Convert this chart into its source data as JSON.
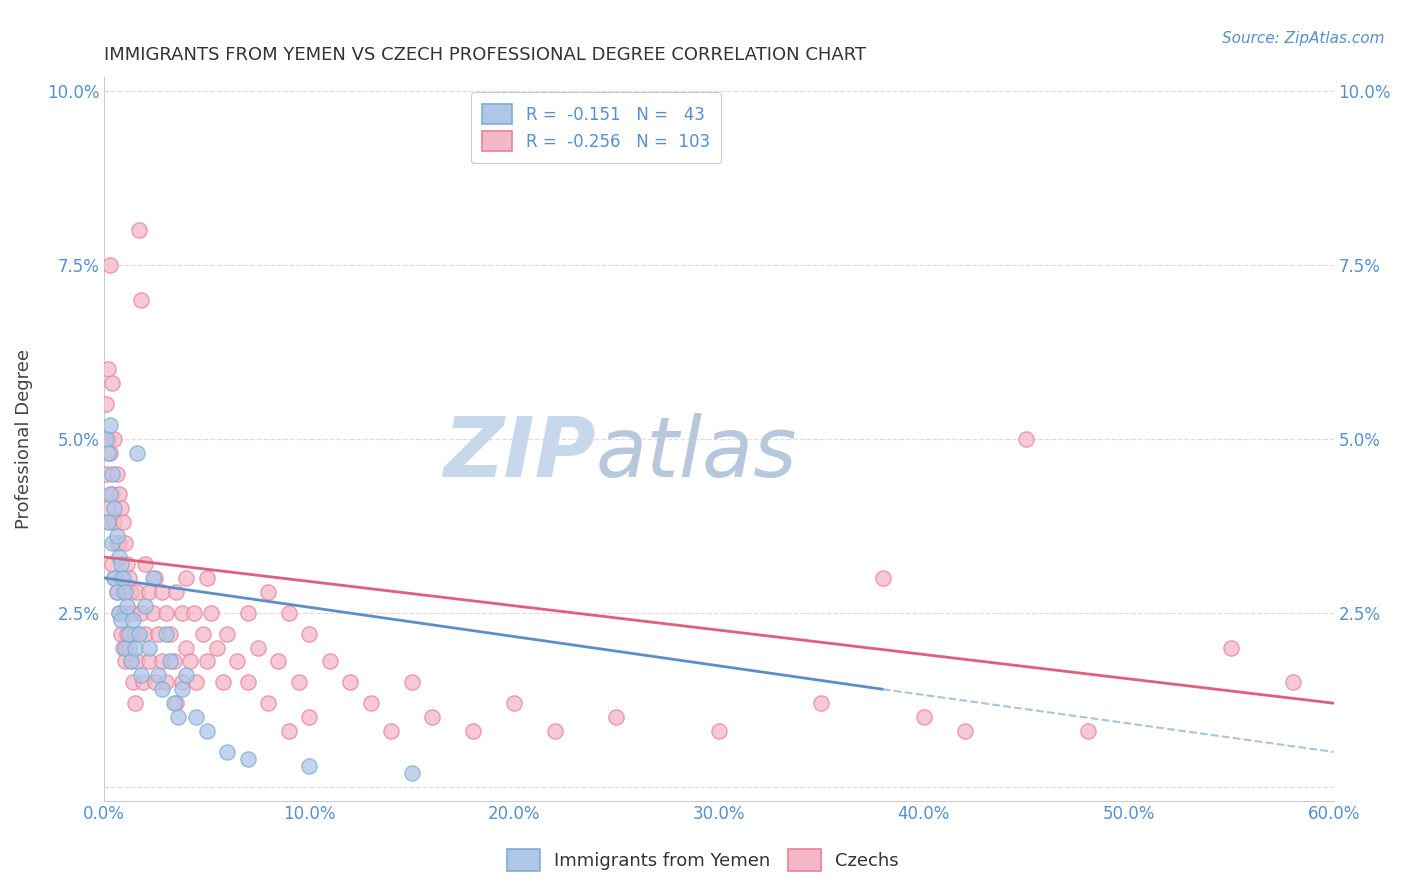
{
  "title": "IMMIGRANTS FROM YEMEN VS CZECH PROFESSIONAL DEGREE CORRELATION CHART",
  "source_text": "Source: ZipAtlas.com",
  "ylabel": "Professional Degree",
  "xlim": [
    0.0,
    0.6
  ],
  "ylim": [
    -0.002,
    0.102
  ],
  "xticks": [
    0.0,
    0.1,
    0.2,
    0.3,
    0.4,
    0.5,
    0.6
  ],
  "yticks": [
    0.0,
    0.025,
    0.05,
    0.075,
    0.1
  ],
  "xticklabels": [
    "0.0%",
    "10.0%",
    "20.0%",
    "30.0%",
    "40.0%",
    "50.0%",
    "60.0%"
  ],
  "yticklabels": [
    "",
    "2.5%",
    "5.0%",
    "7.5%",
    "10.0%"
  ],
  "color_yemen": "#aec6e8",
  "color_czech": "#f5b8c8",
  "color_yemen_edge": "#7aafd4",
  "color_czech_edge": "#e8809a",
  "color_yemen_line": "#5b8fc9",
  "color_czech_line": "#e0607a",
  "color_dashed": "#aac4e0",
  "watermark_zip": "ZIP",
  "watermark_atlas": "atlas",
  "watermark_color_zip": "#c8d8ec",
  "watermark_color_atlas": "#b8c8dc",
  "background_color": "#ffffff",
  "grid_color": "#dddddd",
  "tick_color": "#5590d0",
  "scatter_yemen": [
    [
      0.001,
      0.05
    ],
    [
      0.002,
      0.048
    ],
    [
      0.002,
      0.038
    ],
    [
      0.003,
      0.052
    ],
    [
      0.003,
      0.042
    ],
    [
      0.004,
      0.045
    ],
    [
      0.004,
      0.035
    ],
    [
      0.005,
      0.04
    ],
    [
      0.005,
      0.03
    ],
    [
      0.006,
      0.036
    ],
    [
      0.006,
      0.028
    ],
    [
      0.007,
      0.033
    ],
    [
      0.007,
      0.025
    ],
    [
      0.008,
      0.032
    ],
    [
      0.008,
      0.024
    ],
    [
      0.009,
      0.03
    ],
    [
      0.01,
      0.028
    ],
    [
      0.01,
      0.02
    ],
    [
      0.011,
      0.026
    ],
    [
      0.012,
      0.022
    ],
    [
      0.013,
      0.018
    ],
    [
      0.014,
      0.024
    ],
    [
      0.015,
      0.02
    ],
    [
      0.016,
      0.048
    ],
    [
      0.017,
      0.022
    ],
    [
      0.018,
      0.016
    ],
    [
      0.02,
      0.026
    ],
    [
      0.022,
      0.02
    ],
    [
      0.024,
      0.03
    ],
    [
      0.026,
      0.016
    ],
    [
      0.028,
      0.014
    ],
    [
      0.03,
      0.022
    ],
    [
      0.032,
      0.018
    ],
    [
      0.034,
      0.012
    ],
    [
      0.036,
      0.01
    ],
    [
      0.038,
      0.014
    ],
    [
      0.04,
      0.016
    ],
    [
      0.045,
      0.01
    ],
    [
      0.05,
      0.008
    ],
    [
      0.06,
      0.005
    ],
    [
      0.07,
      0.004
    ],
    [
      0.1,
      0.003
    ],
    [
      0.15,
      0.002
    ]
  ],
  "scatter_czech": [
    [
      0.001,
      0.055
    ],
    [
      0.001,
      0.045
    ],
    [
      0.002,
      0.06
    ],
    [
      0.002,
      0.05
    ],
    [
      0.002,
      0.04
    ],
    [
      0.003,
      0.075
    ],
    [
      0.003,
      0.048
    ],
    [
      0.003,
      0.038
    ],
    [
      0.004,
      0.042
    ],
    [
      0.004,
      0.058
    ],
    [
      0.004,
      0.032
    ],
    [
      0.005,
      0.05
    ],
    [
      0.005,
      0.038
    ],
    [
      0.005,
      0.03
    ],
    [
      0.006,
      0.045
    ],
    [
      0.006,
      0.035
    ],
    [
      0.006,
      0.028
    ],
    [
      0.007,
      0.042
    ],
    [
      0.007,
      0.035
    ],
    [
      0.007,
      0.025
    ],
    [
      0.008,
      0.04
    ],
    [
      0.008,
      0.03
    ],
    [
      0.008,
      0.022
    ],
    [
      0.009,
      0.038
    ],
    [
      0.009,
      0.028
    ],
    [
      0.009,
      0.02
    ],
    [
      0.01,
      0.035
    ],
    [
      0.01,
      0.025
    ],
    [
      0.01,
      0.018
    ],
    [
      0.011,
      0.032
    ],
    [
      0.011,
      0.022
    ],
    [
      0.012,
      0.03
    ],
    [
      0.012,
      0.02
    ],
    [
      0.013,
      0.028
    ],
    [
      0.013,
      0.018
    ],
    [
      0.014,
      0.025
    ],
    [
      0.014,
      0.015
    ],
    [
      0.015,
      0.022
    ],
    [
      0.015,
      0.012
    ],
    [
      0.016,
      0.028
    ],
    [
      0.016,
      0.018
    ],
    [
      0.017,
      0.08
    ],
    [
      0.018,
      0.07
    ],
    [
      0.018,
      0.025
    ],
    [
      0.019,
      0.015
    ],
    [
      0.02,
      0.032
    ],
    [
      0.02,
      0.022
    ],
    [
      0.022,
      0.028
    ],
    [
      0.022,
      0.018
    ],
    [
      0.024,
      0.025
    ],
    [
      0.025,
      0.03
    ],
    [
      0.025,
      0.015
    ],
    [
      0.026,
      0.022
    ],
    [
      0.028,
      0.028
    ],
    [
      0.028,
      0.018
    ],
    [
      0.03,
      0.025
    ],
    [
      0.03,
      0.015
    ],
    [
      0.032,
      0.022
    ],
    [
      0.034,
      0.018
    ],
    [
      0.035,
      0.028
    ],
    [
      0.035,
      0.012
    ],
    [
      0.038,
      0.025
    ],
    [
      0.038,
      0.015
    ],
    [
      0.04,
      0.03
    ],
    [
      0.04,
      0.02
    ],
    [
      0.042,
      0.018
    ],
    [
      0.044,
      0.025
    ],
    [
      0.045,
      0.015
    ],
    [
      0.048,
      0.022
    ],
    [
      0.05,
      0.03
    ],
    [
      0.05,
      0.018
    ],
    [
      0.052,
      0.025
    ],
    [
      0.055,
      0.02
    ],
    [
      0.058,
      0.015
    ],
    [
      0.06,
      0.022
    ],
    [
      0.065,
      0.018
    ],
    [
      0.07,
      0.025
    ],
    [
      0.07,
      0.015
    ],
    [
      0.075,
      0.02
    ],
    [
      0.08,
      0.028
    ],
    [
      0.08,
      0.012
    ],
    [
      0.085,
      0.018
    ],
    [
      0.09,
      0.025
    ],
    [
      0.09,
      0.008
    ],
    [
      0.095,
      0.015
    ],
    [
      0.1,
      0.022
    ],
    [
      0.1,
      0.01
    ],
    [
      0.11,
      0.018
    ],
    [
      0.12,
      0.015
    ],
    [
      0.13,
      0.012
    ],
    [
      0.14,
      0.008
    ],
    [
      0.15,
      0.015
    ],
    [
      0.16,
      0.01
    ],
    [
      0.18,
      0.008
    ],
    [
      0.2,
      0.012
    ],
    [
      0.22,
      0.008
    ],
    [
      0.25,
      0.01
    ],
    [
      0.3,
      0.008
    ],
    [
      0.35,
      0.012
    ],
    [
      0.38,
      0.03
    ],
    [
      0.4,
      0.01
    ],
    [
      0.42,
      0.008
    ],
    [
      0.45,
      0.05
    ],
    [
      0.48,
      0.008
    ],
    [
      0.55,
      0.02
    ],
    [
      0.58,
      0.015
    ]
  ],
  "yemen_line_x": [
    0.0,
    0.38
  ],
  "yemen_line_y_start": 0.03,
  "yemen_line_y_end": 0.014,
  "czech_line_x": [
    0.0,
    0.6
  ],
  "czech_line_y_start": 0.033,
  "czech_line_y_end": 0.012,
  "dashed_line_x": [
    0.38,
    0.6
  ],
  "dashed_line_y_start": 0.014,
  "dashed_line_y_end": 0.005
}
